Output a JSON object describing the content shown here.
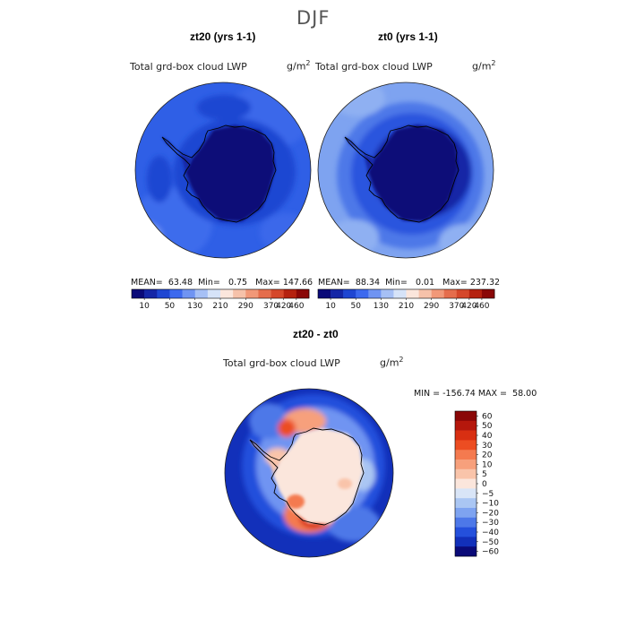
{
  "chart_data": {
    "type": "heatmap",
    "title": "DJF",
    "panels": [
      {
        "name": "zt20",
        "title": "zt20 (yrs 1-1)",
        "variable": "Total grd-box cloud LWP",
        "units_base": "g/m",
        "units_exp": "2",
        "stats": {
          "mean_label": "MEAN=",
          "mean": "63.48",
          "min_label": "Min=",
          "min": "0.75",
          "max_label": "Max=",
          "max": "147.66"
        },
        "dominant_level_index": 3
      },
      {
        "name": "zt0",
        "title": "zt0 (yrs 1-1)",
        "variable": "Total grd-box cloud LWP",
        "units_base": "g/m",
        "units_exp": "2",
        "stats": {
          "mean_label": "MEAN=",
          "mean": "88.34",
          "min_label": "Min=",
          "min": "0.01",
          "max_label": "Max=",
          "max": "237.32"
        },
        "dominant_level_index": 4
      },
      {
        "name": "difference",
        "title": "zt20 - zt0",
        "variable": "Total grd-box cloud LWP",
        "units_base": "g/m",
        "units_exp": "2",
        "stats": {
          "min_label": "MIN =",
          "min": "-156.74",
          "max_label": "MAX =",
          "max": "58.00"
        }
      }
    ],
    "abs_colorbar": {
      "tick_labels": [
        "10",
        "50",
        "130",
        "210",
        "290",
        "370",
        "420",
        "460"
      ],
      "colors": [
        "#0a0a78",
        "#1426a6",
        "#1e46d2",
        "#3c69ee",
        "#6f94f2",
        "#a6c0f5",
        "#d6e3f8",
        "#fbe6dc",
        "#f6c2aa",
        "#f19878",
        "#e56d4c",
        "#d5472a",
        "#b5210f",
        "#8a0707"
      ]
    },
    "diff_colorbar": {
      "tick_labels": [
        "60",
        "50",
        "40",
        "30",
        "20",
        "10",
        "5",
        "0",
        "−5",
        "−10",
        "−20",
        "−30",
        "−40",
        "−50",
        "−60"
      ],
      "colors": [
        "#8a0707",
        "#b5170c",
        "#d82f12",
        "#ec4d22",
        "#f47a4f",
        "#f7a07c",
        "#f9c4aa",
        "#fbe6dc",
        "#d9e5f7",
        "#aac6f3",
        "#7ea3f0",
        "#4d78e8",
        "#2450dc",
        "#1230ba",
        "#0a0a78"
      ]
    }
  }
}
